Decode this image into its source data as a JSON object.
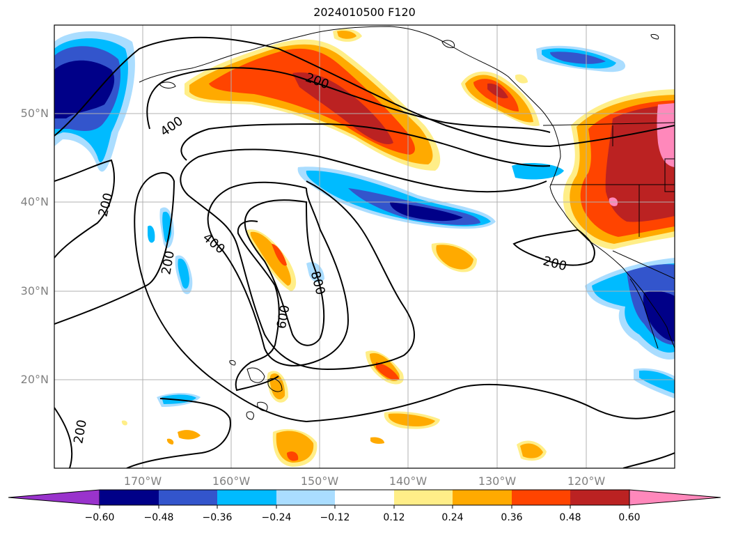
{
  "title": "2024010500 F120",
  "map": {
    "lat_labels": [
      "50°N",
      "40°N",
      "30°N",
      "20°N"
    ],
    "lon_labels": [
      "170°W",
      "160°W",
      "150°W",
      "140°W",
      "130°W",
      "120°W"
    ],
    "contour_labels": [
      "200",
      "400",
      "200",
      "200",
      "400",
      "600",
      "800",
      "200",
      "200"
    ],
    "contour_color": "#000000",
    "grid": true,
    "coastlines": true
  },
  "colorbar": {
    "ticks": [
      "−0.60",
      "−0.48",
      "−0.36",
      "−0.24",
      "−0.12",
      "0.12",
      "0.24",
      "0.36",
      "0.48",
      "0.60"
    ],
    "colors": [
      "#9933cc",
      "#000088",
      "#3355cc",
      "#00bbff",
      "#aaddff",
      "#ffffff",
      "#ffee88",
      "#ffaa00",
      "#ff4400",
      "#bb2222",
      "#ff88bb"
    ],
    "extend": "both"
  }
}
